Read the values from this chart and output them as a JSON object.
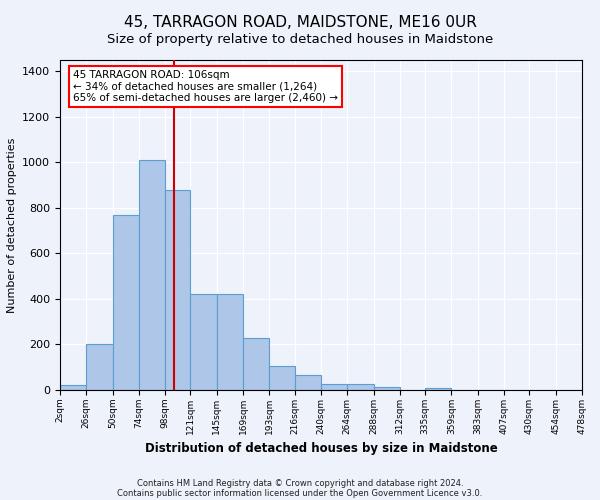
{
  "title": "45, TARRAGON ROAD, MAIDSTONE, ME16 0UR",
  "subtitle": "Size of property relative to detached houses in Maidstone",
  "xlabel": "Distribution of detached houses by size in Maidstone",
  "ylabel": "Number of detached properties",
  "footnote1": "Contains HM Land Registry data © Crown copyright and database right 2024.",
  "footnote2": "Contains public sector information licensed under the Open Government Licence v3.0.",
  "annotation_line1": "45 TARRAGON ROAD: 106sqm",
  "annotation_line2": "← 34% of detached houses are smaller (1,264)",
  "annotation_line3": "65% of semi-detached houses are larger (2,460) →",
  "bar_color": "#aec6e8",
  "bar_edge_color": "#5a9fd4",
  "vline_color": "#cc0000",
  "vline_x": 106,
  "categories": [
    "2sqm",
    "26sqm",
    "50sqm",
    "74sqm",
    "98sqm",
    "121sqm",
    "145sqm",
    "169sqm",
    "193sqm",
    "216sqm",
    "240sqm",
    "264sqm",
    "288sqm",
    "312sqm",
    "335sqm",
    "359sqm",
    "383sqm",
    "407sqm",
    "430sqm",
    "454sqm",
    "478sqm"
  ],
  "bin_edges": [
    2,
    26,
    50,
    74,
    98,
    121,
    145,
    169,
    193,
    216,
    240,
    264,
    288,
    312,
    335,
    359,
    383,
    407,
    430,
    454,
    478
  ],
  "bar_heights": [
    20,
    200,
    770,
    1010,
    880,
    420,
    420,
    230,
    105,
    65,
    25,
    25,
    15,
    0,
    10,
    0,
    0,
    0,
    0,
    0
  ],
  "ylim": [
    0,
    1450
  ],
  "yticks": [
    0,
    200,
    400,
    600,
    800,
    1000,
    1200,
    1400
  ],
  "background_color": "#eef2fb",
  "plot_background": "#eef2fb",
  "grid_color": "#ffffff",
  "title_fontsize": 11,
  "subtitle_fontsize": 9.5
}
